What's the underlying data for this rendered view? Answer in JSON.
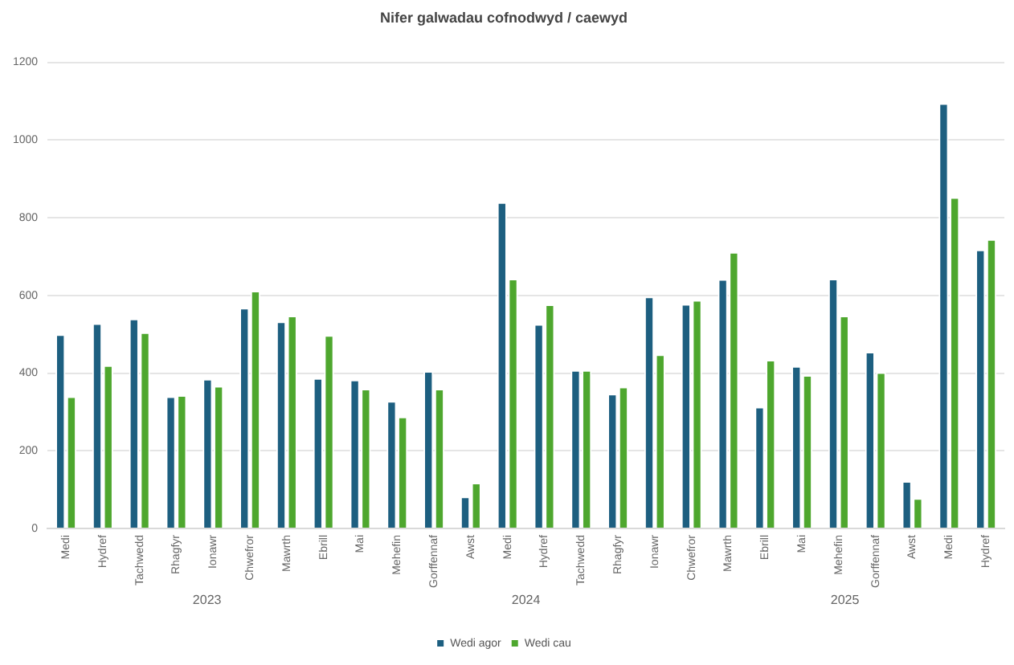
{
  "chart_data": {
    "type": "bar",
    "title": "Nifer galwadau cofnodwyd / caewyd",
    "categories": [
      "Medi",
      "Hydref",
      "Tachwedd",
      "Rhagfyr",
      "Ionawr",
      "Chwefror",
      "Mawrth",
      "Ebrill",
      "Mai",
      "Mehefin",
      "Gorffennaf",
      "Awst",
      "Medi",
      "Hydref",
      "Tachwedd",
      "Rhagfyr",
      "Ionawr",
      "Chwefror",
      "Mawrth",
      "Ebrill",
      "Mai",
      "Mehefin",
      "Gorffennaf",
      "Awst",
      "Medi",
      "Hydref"
    ],
    "series": [
      {
        "name": "Wedi agor",
        "color": "#1d5f80",
        "values": [
          500,
          528,
          540,
          340,
          385,
          568,
          533,
          387,
          383,
          328,
          405,
          82,
          840,
          526,
          408,
          347,
          597,
          578,
          642,
          313,
          418,
          643,
          455,
          122,
          1095,
          718
        ]
      },
      {
        "name": "Wedi cau",
        "color": "#4ea72e",
        "values": [
          340,
          420,
          505,
          343,
          367,
          612,
          548,
          498,
          360,
          288,
          360,
          118,
          643,
          577,
          408,
          365,
          448,
          588,
          712,
          434,
          395,
          548,
          402,
          78,
          853,
          745
        ]
      }
    ],
    "annotations": [
      "2023",
      "2024",
      "2025"
    ],
    "ylim": [
      0,
      1200
    ],
    "yticks": [
      0,
      200,
      400,
      600,
      800,
      1000,
      1200
    ],
    "grid": "y",
    "legend": "bottom"
  }
}
